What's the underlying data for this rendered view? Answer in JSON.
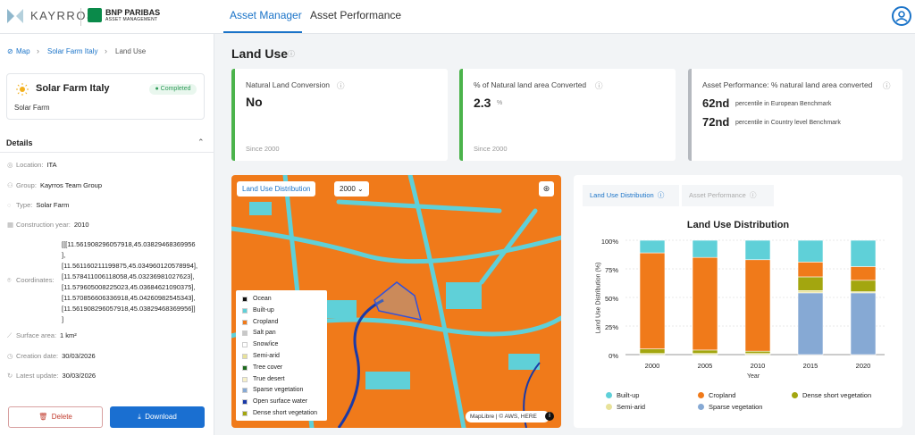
{
  "header": {
    "brand_kayrros": "KAYRROS",
    "brand_bnp_1": "BNP PARIBAS",
    "brand_bnp_2": "ASSET MANAGEMENT",
    "tabs": [
      {
        "label": "Asset Manager",
        "active": true
      },
      {
        "label": "Asset Performance",
        "active": false
      }
    ],
    "accent": "#1a73c8"
  },
  "breadcrumb": [
    "Map",
    "Solar Farm Italy",
    "Land Use"
  ],
  "asset": {
    "name": "Solar Farm Italy",
    "status": "Completed",
    "type": "Solar Farm"
  },
  "details": {
    "title": "Details",
    "rows": [
      {
        "label": "Location:",
        "value": "ITA"
      },
      {
        "label": "Group:",
        "value": "Kayrros Team Group"
      },
      {
        "label": "Type:",
        "value": "Solar Farm"
      },
      {
        "label": "Construction year:",
        "value": "2010"
      },
      {
        "label": "Coordinates:",
        "value": ""
      },
      {
        "label": "Surface area:",
        "value": "1 km²"
      },
      {
        "label": "Creation date:",
        "value": "30/03/2026"
      },
      {
        "label": "Latest update:",
        "value": "30/03/2026"
      }
    ],
    "coordinates": [
      "[[[11.561908296057918,45.03829468369956",
      "],",
      "[11.561160211199875,45.034960120578994],",
      "[11.578411006118058,45.03236981027623],",
      "[11.579605008225023,45.03684621090375],",
      "[11.570856606336918,45.04260982545343],",
      "[11.561908296057918,45.03829468369956]]",
      "]"
    ]
  },
  "actions": {
    "delete": "Delete",
    "download": "Download"
  },
  "main": {
    "title": "Land Use",
    "kpis": [
      {
        "label": "Natural Land Conversion",
        "value": "No",
        "since": "Since 2000",
        "color": "#4bb34b"
      },
      {
        "label": "% of Natural land area Converted",
        "value": "2.3",
        "unit": "%",
        "since": "Since 2000",
        "color": "#4bb34b"
      },
      {
        "label": "Asset Performance: % natural land area converted",
        "rank_eu": "62nd",
        "rank_eu_text": "percentile in European Benchmark",
        "rank_country": "72nd",
        "rank_country_text": "percentile in Country level Benchmark",
        "color": "#b5b9bf"
      }
    ]
  },
  "map": {
    "layer_label": "Land Use Distribution",
    "year": "2000",
    "attribution": "MapLibre | © AWS, HERE",
    "legend": [
      {
        "label": "Ocean",
        "color": "#111111"
      },
      {
        "label": "Built-up",
        "color": "#5fd0d8"
      },
      {
        "label": "Cropland",
        "color": "#f07a1a"
      },
      {
        "label": "Salt pan",
        "color": "#c8c8c8"
      },
      {
        "label": "Snow/ice",
        "color": "#ffffff"
      },
      {
        "label": "Semi-arid",
        "color": "#e8e29a"
      },
      {
        "label": "Tree cover",
        "color": "#1e6b1e"
      },
      {
        "label": "True desert",
        "color": "#f6f0c8"
      },
      {
        "label": "Sparse vegetation",
        "color": "#86a9d4"
      },
      {
        "label": "Open surface water",
        "color": "#1a3aa8"
      },
      {
        "label": "Dense short vegetation",
        "color": "#a3a60f"
      }
    ]
  },
  "chart": {
    "tabs": [
      "Land Use Distribution",
      "Asset Performance"
    ],
    "title": "Land Use Distribution",
    "ylabel": "Land Use Distribution (%)",
    "xlabel": "Year",
    "yticks": [
      "100%",
      "75%",
      "50%",
      "25%",
      "0%"
    ],
    "legend": [
      {
        "label": "Built-up",
        "color": "#5fd0d8"
      },
      {
        "label": "Cropland",
        "color": "#f07a1a"
      },
      {
        "label": "Dense short vegetation",
        "color": "#a3a60f"
      },
      {
        "label": "Semi-arid",
        "color": "#e8e29a"
      },
      {
        "label": "Sparse vegetation",
        "color": "#86a9d4"
      }
    ]
  },
  "chart_data": {
    "type": "bar",
    "stacked": true,
    "title": "Land Use Distribution",
    "xlabel": "Year",
    "ylabel": "Land Use Distribution (%)",
    "ylim": [
      0,
      100
    ],
    "categories": [
      "2000",
      "2005",
      "2010",
      "2015",
      "2020"
    ],
    "series": [
      {
        "name": "Sparse vegetation",
        "color": "#86a9d4",
        "values": [
          0,
          0,
          0,
          54,
          54
        ]
      },
      {
        "name": "Semi-arid",
        "color": "#e8e29a",
        "values": [
          1,
          1,
          1,
          2,
          1
        ]
      },
      {
        "name": "Dense short vegetation",
        "color": "#a3a60f",
        "values": [
          4,
          3,
          2,
          12,
          10
        ]
      },
      {
        "name": "Cropland",
        "color": "#f07a1a",
        "values": [
          84,
          81,
          80,
          13,
          12
        ]
      },
      {
        "name": "Built-up",
        "color": "#5fd0d8",
        "values": [
          11,
          15,
          17,
          19,
          23
        ]
      }
    ]
  }
}
